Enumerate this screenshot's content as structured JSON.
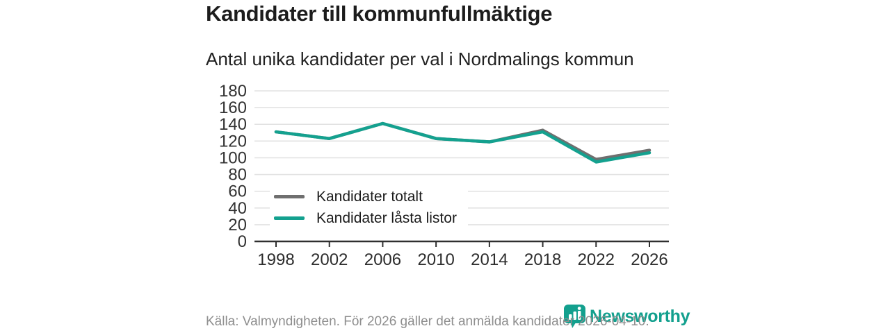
{
  "header": {
    "title": "Kandidater till kommunfullmäktige",
    "subtitle": "Antal unika kandidater per val i Nordmalings kommun"
  },
  "chart_data": {
    "type": "line",
    "categories": [
      "1998",
      "2002",
      "2006",
      "2010",
      "2014",
      "2018",
      "2022",
      "2026"
    ],
    "series": [
      {
        "name": "Kandidater totalt",
        "color": "#6f6f6f",
        "values": [
          131,
          123,
          141,
          123,
          119,
          133,
          98,
          109
        ]
      },
      {
        "name": "Kandidater låsta listor",
        "color": "#14a18f",
        "values": [
          131,
          123,
          141,
          123,
          119,
          131,
          95,
          106
        ]
      }
    ],
    "title": "Kandidater till kommunfullmäktige",
    "subtitle": "Antal unika kandidater per val i Nordmalings kommun",
    "xlabel": "",
    "ylabel": "",
    "ylim": [
      0,
      180
    ],
    "ytick_step": 20,
    "grid": true,
    "legend_position": "inside-bottom-left"
  },
  "footer": {
    "source": "Källa: Valmyndigheten. För 2026 gäller det anmälda kandidater 2026-04-10."
  },
  "branding": {
    "logo_text": "Newsworthy",
    "logo_icon": "bar-chart-speech-bubble-icon",
    "brand_color": "#13a08e"
  },
  "colors": {
    "background": "#ffffff",
    "grid_line": "#e2e2e2",
    "axis_line": "#2f2f2f",
    "tick_label": "#333333",
    "title_text": "#1c1c1c",
    "footer_text": "#8e8e8e"
  }
}
